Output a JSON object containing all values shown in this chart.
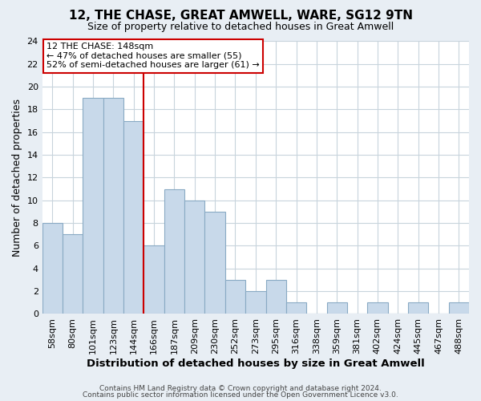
{
  "title": "12, THE CHASE, GREAT AMWELL, WARE, SG12 9TN",
  "subtitle": "Size of property relative to detached houses in Great Amwell",
  "xlabel": "Distribution of detached houses by size in Great Amwell",
  "ylabel": "Number of detached properties",
  "bin_labels": [
    "58sqm",
    "80sqm",
    "101sqm",
    "123sqm",
    "144sqm",
    "166sqm",
    "187sqm",
    "209sqm",
    "230sqm",
    "252sqm",
    "273sqm",
    "295sqm",
    "316sqm",
    "338sqm",
    "359sqm",
    "381sqm",
    "402sqm",
    "424sqm",
    "445sqm",
    "467sqm",
    "488sqm"
  ],
  "bar_heights": [
    8,
    7,
    19,
    19,
    17,
    6,
    11,
    10,
    9,
    3,
    2,
    3,
    1,
    0,
    1,
    0,
    1,
    0,
    1,
    0,
    1
  ],
  "bar_color": "#c8d9ea",
  "bar_edge_color": "#89aac4",
  "highlight_line_color": "#cc0000",
  "ylim": [
    0,
    24
  ],
  "yticks": [
    0,
    2,
    4,
    6,
    8,
    10,
    12,
    14,
    16,
    18,
    20,
    22,
    24
  ],
  "annotation_line1": "12 THE CHASE: 148sqm",
  "annotation_line2": "← 47% of detached houses are smaller (55)",
  "annotation_line3": "52% of semi-detached houses are larger (61) →",
  "annotation_box_color": "#ffffff",
  "annotation_box_edge": "#cc0000",
  "footer_line1": "Contains HM Land Registry data © Crown copyright and database right 2024.",
  "footer_line2": "Contains public sector information licensed under the Open Government Licence v3.0.",
  "background_color": "#e8eef4",
  "plot_bg_color": "#ffffff",
  "grid_color": "#c8d4dc"
}
